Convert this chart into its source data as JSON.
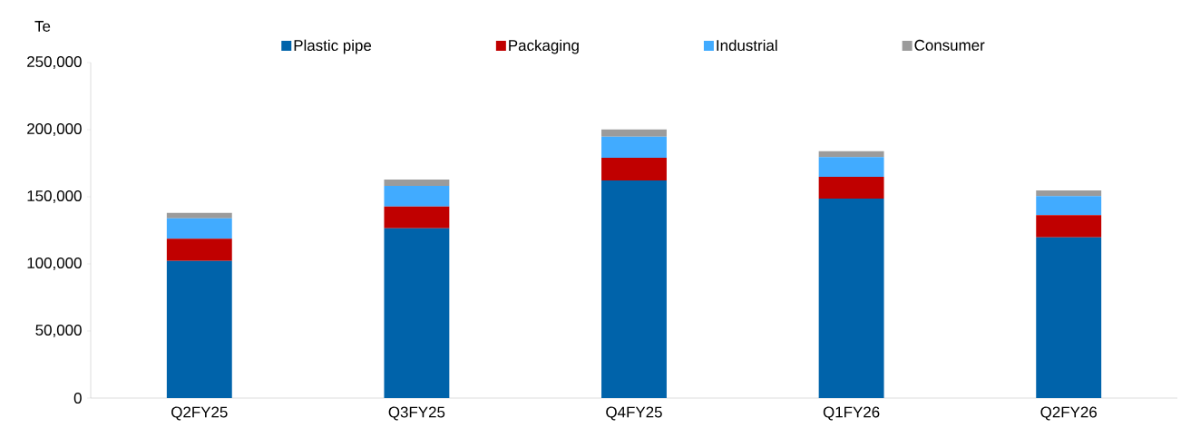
{
  "chart_data": {
    "type": "bar",
    "stacked": true,
    "ylabel": "Te",
    "categories": [
      "Q2FY25",
      "Q3FY25",
      "Q4FY25",
      "Q1FY26",
      "Q2FY26"
    ],
    "series": [
      {
        "name": "Plastic pipe",
        "color": "#0063aa",
        "values": [
          102200,
          126600,
          162200,
          148700,
          119800
        ]
      },
      {
        "name": "Packaging",
        "color": "#c00000",
        "values": [
          16500,
          16200,
          16900,
          16200,
          16500
        ]
      },
      {
        "name": "Industrial",
        "color": "#41abff",
        "values": [
          15300,
          15300,
          15700,
          14600,
          14200
        ]
      },
      {
        "name": "Consumer",
        "color": "#9b9b9b",
        "values": [
          4000,
          4700,
          5400,
          4500,
          4200
        ]
      }
    ],
    "ylim": [
      0,
      250000
    ],
    "yticks": [
      {
        "value": 0,
        "label": "0"
      },
      {
        "value": 50000,
        "label": "50,000"
      },
      {
        "value": 100000,
        "label": "100,000"
      },
      {
        "value": 150000,
        "label": "150,000"
      },
      {
        "value": 200000,
        "label": "200,000"
      },
      {
        "value": 250000,
        "label": "250,000"
      }
    ],
    "grid": false,
    "legend": "top"
  }
}
